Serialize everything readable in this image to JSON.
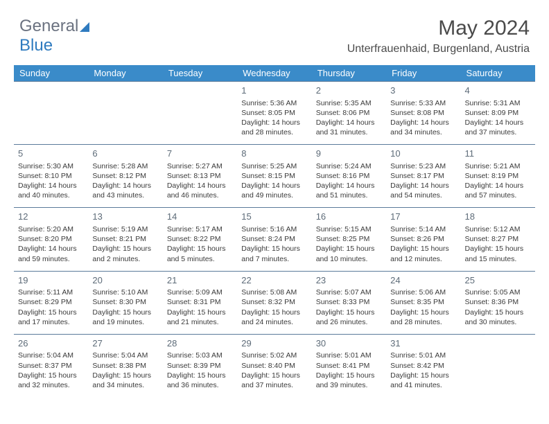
{
  "logo": {
    "part1": "General",
    "part2": "Blue"
  },
  "title": "May 2024",
  "location": "Unterfrauenhaid, Burgenland, Austria",
  "columns": [
    "Sunday",
    "Monday",
    "Tuesday",
    "Wednesday",
    "Thursday",
    "Friday",
    "Saturday"
  ],
  "colors": {
    "header_bg": "#3a8bc9",
    "header_fg": "#ffffff",
    "border": "#5a7a9a",
    "text": "#3a3a3a",
    "daynum": "#5d6b78",
    "page_bg": "#ffffff"
  },
  "fonts": {
    "title_size_pt": 22,
    "location_size_pt": 12,
    "header_size_pt": 10,
    "cell_size_pt": 8,
    "daynum_size_pt": 10
  },
  "weeks": [
    [
      null,
      null,
      null,
      {
        "d": "1",
        "sunrise": "5:36 AM",
        "sunset": "8:05 PM",
        "dl1": "Daylight: 14 hours",
        "dl2": "and 28 minutes."
      },
      {
        "d": "2",
        "sunrise": "5:35 AM",
        "sunset": "8:06 PM",
        "dl1": "Daylight: 14 hours",
        "dl2": "and 31 minutes."
      },
      {
        "d": "3",
        "sunrise": "5:33 AM",
        "sunset": "8:08 PM",
        "dl1": "Daylight: 14 hours",
        "dl2": "and 34 minutes."
      },
      {
        "d": "4",
        "sunrise": "5:31 AM",
        "sunset": "8:09 PM",
        "dl1": "Daylight: 14 hours",
        "dl2": "and 37 minutes."
      }
    ],
    [
      {
        "d": "5",
        "sunrise": "5:30 AM",
        "sunset": "8:10 PM",
        "dl1": "Daylight: 14 hours",
        "dl2": "and 40 minutes."
      },
      {
        "d": "6",
        "sunrise": "5:28 AM",
        "sunset": "8:12 PM",
        "dl1": "Daylight: 14 hours",
        "dl2": "and 43 minutes."
      },
      {
        "d": "7",
        "sunrise": "5:27 AM",
        "sunset": "8:13 PM",
        "dl1": "Daylight: 14 hours",
        "dl2": "and 46 minutes."
      },
      {
        "d": "8",
        "sunrise": "5:25 AM",
        "sunset": "8:15 PM",
        "dl1": "Daylight: 14 hours",
        "dl2": "and 49 minutes."
      },
      {
        "d": "9",
        "sunrise": "5:24 AM",
        "sunset": "8:16 PM",
        "dl1": "Daylight: 14 hours",
        "dl2": "and 51 minutes."
      },
      {
        "d": "10",
        "sunrise": "5:23 AM",
        "sunset": "8:17 PM",
        "dl1": "Daylight: 14 hours",
        "dl2": "and 54 minutes."
      },
      {
        "d": "11",
        "sunrise": "5:21 AM",
        "sunset": "8:19 PM",
        "dl1": "Daylight: 14 hours",
        "dl2": "and 57 minutes."
      }
    ],
    [
      {
        "d": "12",
        "sunrise": "5:20 AM",
        "sunset": "8:20 PM",
        "dl1": "Daylight: 14 hours",
        "dl2": "and 59 minutes."
      },
      {
        "d": "13",
        "sunrise": "5:19 AM",
        "sunset": "8:21 PM",
        "dl1": "Daylight: 15 hours",
        "dl2": "and 2 minutes."
      },
      {
        "d": "14",
        "sunrise": "5:17 AM",
        "sunset": "8:22 PM",
        "dl1": "Daylight: 15 hours",
        "dl2": "and 5 minutes."
      },
      {
        "d": "15",
        "sunrise": "5:16 AM",
        "sunset": "8:24 PM",
        "dl1": "Daylight: 15 hours",
        "dl2": "and 7 minutes."
      },
      {
        "d": "16",
        "sunrise": "5:15 AM",
        "sunset": "8:25 PM",
        "dl1": "Daylight: 15 hours",
        "dl2": "and 10 minutes."
      },
      {
        "d": "17",
        "sunrise": "5:14 AM",
        "sunset": "8:26 PM",
        "dl1": "Daylight: 15 hours",
        "dl2": "and 12 minutes."
      },
      {
        "d": "18",
        "sunrise": "5:12 AM",
        "sunset": "8:27 PM",
        "dl1": "Daylight: 15 hours",
        "dl2": "and 15 minutes."
      }
    ],
    [
      {
        "d": "19",
        "sunrise": "5:11 AM",
        "sunset": "8:29 PM",
        "dl1": "Daylight: 15 hours",
        "dl2": "and 17 minutes."
      },
      {
        "d": "20",
        "sunrise": "5:10 AM",
        "sunset": "8:30 PM",
        "dl1": "Daylight: 15 hours",
        "dl2": "and 19 minutes."
      },
      {
        "d": "21",
        "sunrise": "5:09 AM",
        "sunset": "8:31 PM",
        "dl1": "Daylight: 15 hours",
        "dl2": "and 21 minutes."
      },
      {
        "d": "22",
        "sunrise": "5:08 AM",
        "sunset": "8:32 PM",
        "dl1": "Daylight: 15 hours",
        "dl2": "and 24 minutes."
      },
      {
        "d": "23",
        "sunrise": "5:07 AM",
        "sunset": "8:33 PM",
        "dl1": "Daylight: 15 hours",
        "dl2": "and 26 minutes."
      },
      {
        "d": "24",
        "sunrise": "5:06 AM",
        "sunset": "8:35 PM",
        "dl1": "Daylight: 15 hours",
        "dl2": "and 28 minutes."
      },
      {
        "d": "25",
        "sunrise": "5:05 AM",
        "sunset": "8:36 PM",
        "dl1": "Daylight: 15 hours",
        "dl2": "and 30 minutes."
      }
    ],
    [
      {
        "d": "26",
        "sunrise": "5:04 AM",
        "sunset": "8:37 PM",
        "dl1": "Daylight: 15 hours",
        "dl2": "and 32 minutes."
      },
      {
        "d": "27",
        "sunrise": "5:04 AM",
        "sunset": "8:38 PM",
        "dl1": "Daylight: 15 hours",
        "dl2": "and 34 minutes."
      },
      {
        "d": "28",
        "sunrise": "5:03 AM",
        "sunset": "8:39 PM",
        "dl1": "Daylight: 15 hours",
        "dl2": "and 36 minutes."
      },
      {
        "d": "29",
        "sunrise": "5:02 AM",
        "sunset": "8:40 PM",
        "dl1": "Daylight: 15 hours",
        "dl2": "and 37 minutes."
      },
      {
        "d": "30",
        "sunrise": "5:01 AM",
        "sunset": "8:41 PM",
        "dl1": "Daylight: 15 hours",
        "dl2": "and 39 minutes."
      },
      {
        "d": "31",
        "sunrise": "5:01 AM",
        "sunset": "8:42 PM",
        "dl1": "Daylight: 15 hours",
        "dl2": "and 41 minutes."
      },
      null
    ]
  ],
  "labels": {
    "sunrise_prefix": "Sunrise: ",
    "sunset_prefix": "Sunset: "
  }
}
